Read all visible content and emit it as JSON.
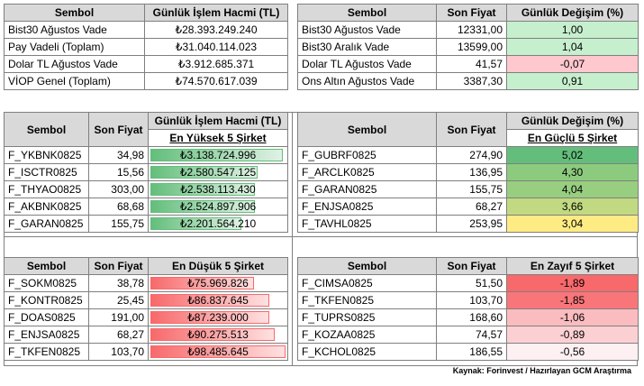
{
  "top_left": {
    "headers": [
      "Sembol",
      "Günlük İşlem Hacmi (TL)"
    ],
    "rows": [
      {
        "sym": "Bist30 Ağustos Vade",
        "val": "₺28.393.249.240"
      },
      {
        "sym": "Pay Vadeli (Toplam)",
        "val": "₺31.040.114.023"
      },
      {
        "sym": "Dolar TL Ağustos Vade",
        "val": "₺3.912.685.371"
      },
      {
        "sym": "VİOP Genel (Toplam)",
        "val": "₺74.570.617.039"
      }
    ]
  },
  "top_right": {
    "headers": [
      "Sembol",
      "Son Fiyat",
      "Günlük Değişim (%)"
    ],
    "rows": [
      {
        "sym": "Bist30 Ağustos Vade",
        "price": "12331,00",
        "chg": "1,00",
        "color": "#c6efce"
      },
      {
        "sym": "Bist30 Aralık Vade",
        "price": "13599,00",
        "chg": "1,04",
        "color": "#c6efce"
      },
      {
        "sym": "Dolar TL Ağustos Vade",
        "price": "41,57",
        "chg": "-0,07",
        "color": "#ffc7ce"
      },
      {
        "sym": "Ons Altın Ağustos Vade",
        "price": "3387,30",
        "chg": "0,91",
        "color": "#c6efce"
      }
    ]
  },
  "top5": {
    "headers": [
      "Sembol",
      "Son Fiyat",
      "Günlük İşlem Hacmi (TL)"
    ],
    "sub": "En Yüksek 5 Şirket",
    "rows": [
      {
        "sym": "F_YKBNK0825",
        "price": "34,98",
        "vol": "₺3.138.724.996",
        "level": 0.98
      },
      {
        "sym": "F_ISCTR0825",
        "price": "15,56",
        "vol": "₺2.580.547.125",
        "level": 0.8
      },
      {
        "sym": "F_THYAO0825",
        "price": "303,00",
        "vol": "₺2.538.113.430",
        "level": 0.78
      },
      {
        "sym": "F_AKBNK0825",
        "price": "68,68",
        "vol": "₺2.524.897.906",
        "level": 0.78
      },
      {
        "sym": "F_GARAN0825",
        "price": "155,75",
        "vol": "₺2.201.564.210",
        "level": 0.68
      }
    ]
  },
  "gainers": {
    "headers": [
      "Sembol",
      "Son Fiyat",
      "Günlük Değişim (%)"
    ],
    "sub": "En Güçlü 5 Şirket",
    "rows": [
      {
        "sym": "F_GUBRF0825",
        "price": "274,90",
        "chg": "5,02",
        "color": "#63be7b"
      },
      {
        "sym": "F_ARCLK0825",
        "price": "136,95",
        "chg": "4,30",
        "color": "#8ccb7e"
      },
      {
        "sym": "F_GARAN0825",
        "price": "155,75",
        "chg": "4,04",
        "color": "#98ce7f"
      },
      {
        "sym": "F_ENJSA0825",
        "price": "68,27",
        "chg": "3,66",
        "color": "#c1da81"
      },
      {
        "sym": "F_TAVHL0825",
        "price": "253,95",
        "chg": "3,04",
        "color": "#ffeb84"
      }
    ]
  },
  "bottom5": {
    "headers": [
      "Sembol",
      "Son Fiyat",
      "En Düşük 5 Şirket"
    ],
    "rows": [
      {
        "sym": "F_SOKM0825",
        "price": "38,78",
        "vol": "₺75.969.826",
        "level": 0.77
      },
      {
        "sym": "F_KONTR0825",
        "price": "25,45",
        "vol": "₺86.837.645",
        "level": 0.88
      },
      {
        "sym": "F_DOAS0825",
        "price": "191,00",
        "vol": "₺87.239.000",
        "level": 0.88
      },
      {
        "sym": "F_ENJSA0825",
        "price": "68,27",
        "vol": "₺90.275.513",
        "level": 0.92
      },
      {
        "sym": "F_TKFEN0825",
        "price": "103,70",
        "vol": "₺98.485.645",
        "level": 1.0
      }
    ]
  },
  "losers": {
    "headers": [
      "Sembol",
      "Son Fiyat",
      "En Zayıf 5 Şirket"
    ],
    "rows": [
      {
        "sym": "F_CIMSA0825",
        "price": "51,50",
        "chg": "-1,89",
        "color": "#f8696b"
      },
      {
        "sym": "F_TKFEN0825",
        "price": "103,70",
        "chg": "-1,85",
        "color": "#f8767a"
      },
      {
        "sym": "F_TUPRS0825",
        "price": "168,60",
        "chg": "-1,06",
        "color": "#fbbcc0"
      },
      {
        "sym": "F_KOZAA0825",
        "price": "74,57",
        "chg": "-0,89",
        "color": "#fcd0d3"
      },
      {
        "sym": "F_KCHOL0825",
        "price": "186,55",
        "chg": "-0,56",
        "color": "#fdf0f2"
      }
    ]
  },
  "source": "Kaynak: Forinvest / Hazırlayan GCM Araştırma",
  "bar_colors": {
    "green": "#63be7b",
    "red": "#f8696b"
  }
}
